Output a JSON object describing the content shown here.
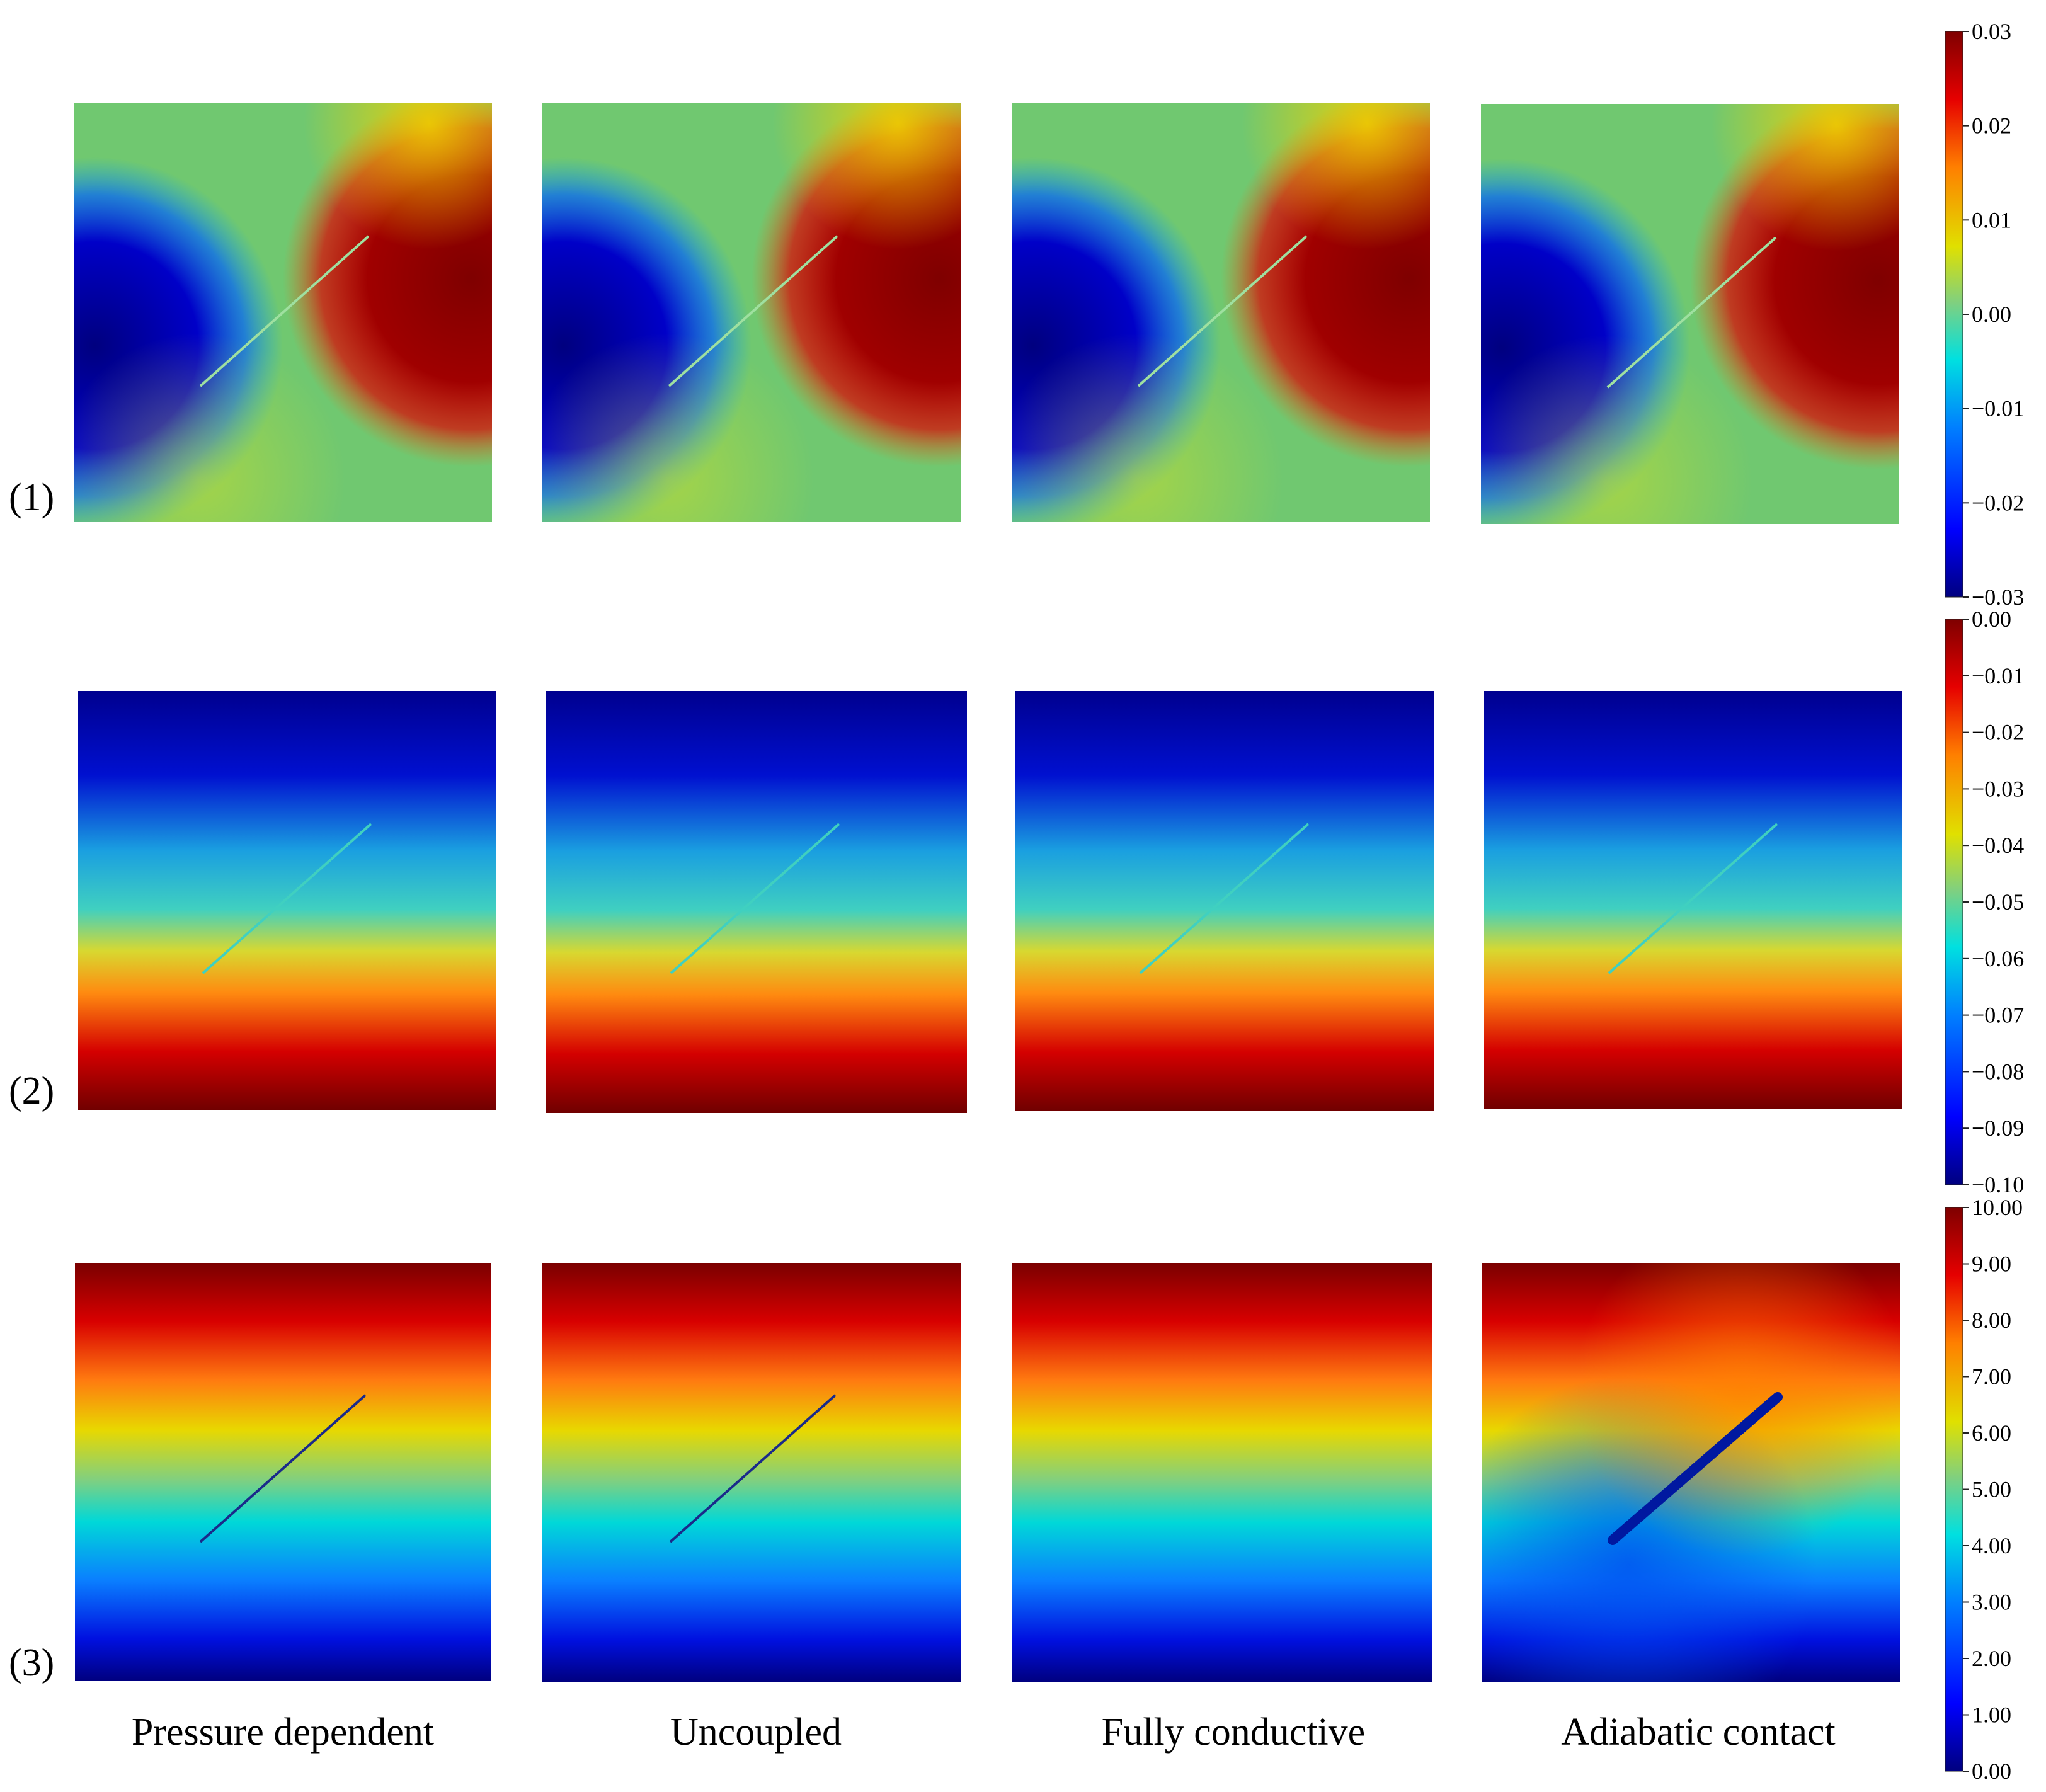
{
  "rows": [
    {
      "label": "(1)",
      "colorbar_ticks": [
        "0.03",
        "0.02",
        "0.01",
        "0.00",
        "−0.01",
        "−0.02",
        "−0.03"
      ]
    },
    {
      "label": "(2)",
      "colorbar_ticks": [
        "0.00",
        "−0.01",
        "−0.02",
        "−0.03",
        "−0.04",
        "−0.05",
        "−0.06",
        "−0.07",
        "−0.08",
        "−0.09",
        "−0.10"
      ]
    },
    {
      "label": "(3)",
      "colorbar_ticks": [
        "10.00",
        "9.00",
        "8.00",
        "7.00",
        "6.00",
        "5.00",
        "4.00",
        "3.00",
        "2.00",
        "1.00",
        "0.00"
      ]
    }
  ],
  "columns": [
    {
      "label": "Pressure dependent"
    },
    {
      "label": "Uncoupled"
    },
    {
      "label": "Fully conductive"
    },
    {
      "label": "Adiabatic contact"
    }
  ],
  "colormap": [
    "#00007f",
    "#0000ff",
    "#007fff",
    "#00e0e0",
    "#7fd080",
    "#e0e000",
    "#ff7f00",
    "#e60000",
    "#7f0000"
  ]
}
